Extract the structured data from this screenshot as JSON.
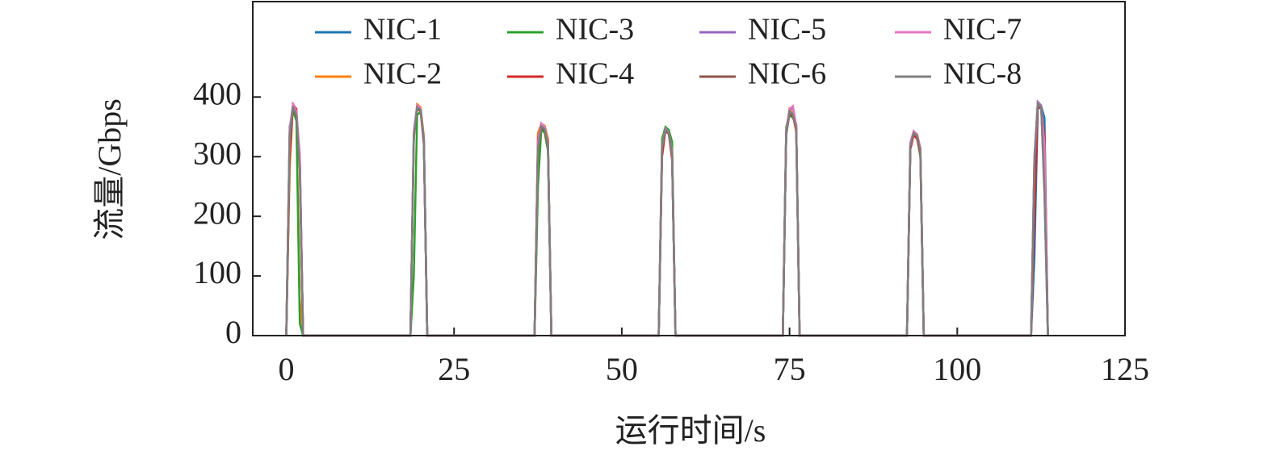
{
  "chart_data": {
    "type": "line",
    "xlabel": "运行时间/s",
    "ylabel": "流量/Gbps",
    "xlim": [
      -5,
      125
    ],
    "xticks": [
      0,
      25,
      50,
      75,
      100,
      125
    ],
    "ylim": [
      0,
      560
    ],
    "yticks": [
      0,
      100,
      200,
      300,
      400
    ],
    "legend": "upper center",
    "x": [
      0,
      0.5,
      1,
      1.5,
      2,
      2.5,
      18.5,
      19,
      19.5,
      20,
      20.5,
      21,
      37,
      37.5,
      38,
      38.5,
      39,
      39.5,
      55.5,
      56,
      56.5,
      57,
      57.5,
      58,
      74,
      74.5,
      75,
      75.5,
      76,
      76.5,
      92.5,
      93,
      93.5,
      94,
      94.5,
      95,
      111,
      111.5,
      112,
      112.5,
      113,
      113.5
    ],
    "series": [
      {
        "name": "NIC-1",
        "color": "#1f77b4",
        "values": [
          0,
          350,
          380,
          370,
          300,
          0,
          0,
          340,
          385,
          380,
          330,
          0,
          0,
          300,
          350,
          345,
          320,
          0,
          0,
          320,
          345,
          340,
          300,
          0,
          0,
          340,
          375,
          370,
          350,
          0,
          0,
          320,
          340,
          335,
          310,
          0,
          0,
          130,
          380,
          385,
          365,
          0
        ]
      },
      {
        "name": "NIC-2",
        "color": "#ff7f0e",
        "values": [
          0,
          280,
          385,
          375,
          60,
          0,
          0,
          330,
          388,
          383,
          335,
          0,
          0,
          340,
          355,
          352,
          330,
          0,
          0,
          310,
          348,
          342,
          310,
          0,
          0,
          345,
          380,
          372,
          340,
          0,
          0,
          315,
          342,
          338,
          315,
          0,
          0,
          290,
          388,
          380,
          300,
          0
        ]
      },
      {
        "name": "NIC-3",
        "color": "#2ca02c",
        "values": [
          0,
          340,
          378,
          360,
          20,
          0,
          0,
          100,
          370,
          375,
          330,
          0,
          0,
          250,
          345,
          340,
          310,
          0,
          0,
          330,
          350,
          345,
          325,
          0,
          0,
          350,
          370,
          365,
          355,
          0,
          0,
          318,
          338,
          332,
          300,
          0,
          0,
          280,
          390,
          382,
          330,
          0
        ]
      },
      {
        "name": "NIC-4",
        "color": "#d62728",
        "values": [
          0,
          300,
          388,
          380,
          280,
          0,
          0,
          335,
          382,
          378,
          320,
          0,
          0,
          330,
          352,
          348,
          325,
          0,
          0,
          300,
          343,
          338,
          295,
          0,
          0,
          338,
          372,
          368,
          345,
          0,
          0,
          312,
          336,
          330,
          305,
          0,
          0,
          200,
          385,
          380,
          335,
          0
        ]
      },
      {
        "name": "NIC-5",
        "color": "#9467bd",
        "values": [
          0,
          330,
          386,
          372,
          290,
          0,
          0,
          338,
          384,
          380,
          325,
          0,
          0,
          320,
          350,
          346,
          318,
          0,
          0,
          315,
          346,
          340,
          305,
          0,
          0,
          342,
          378,
          382,
          350,
          0,
          0,
          322,
          341,
          336,
          312,
          0,
          0,
          300,
          392,
          386,
          240,
          0
        ]
      },
      {
        "name": "NIC-6",
        "color": "#8c564b",
        "values": [
          0,
          320,
          382,
          368,
          295,
          0,
          0,
          332,
          380,
          376,
          328,
          0,
          0,
          310,
          348,
          344,
          315,
          0,
          0,
          312,
          344,
          339,
          302,
          0,
          0,
          336,
          374,
          369,
          348,
          0,
          0,
          316,
          339,
          334,
          308,
          0,
          0,
          285,
          386,
          381,
          310,
          0
        ]
      },
      {
        "name": "NIC-7",
        "color": "#e377c2",
        "values": [
          0,
          345,
          390,
          375,
          305,
          0,
          0,
          342,
          386,
          381,
          332,
          0,
          0,
          325,
          356,
          350,
          322,
          0,
          0,
          318,
          347,
          341,
          308,
          0,
          0,
          344,
          380,
          385,
          352,
          0,
          0,
          324,
          343,
          337,
          314,
          0,
          0,
          295,
          390,
          384,
          320,
          0
        ]
      },
      {
        "name": "NIC-8",
        "color": "#7f7f7f",
        "values": [
          0,
          335,
          384,
          370,
          280,
          0,
          0,
          336,
          383,
          379,
          330,
          0,
          0,
          315,
          351,
          347,
          320,
          0,
          0,
          316,
          345,
          340,
          304,
          0,
          0,
          340,
          376,
          371,
          347,
          0,
          0,
          318,
          340,
          335,
          311,
          0,
          0,
          292,
          389,
          383,
          235,
          0
        ]
      }
    ]
  }
}
